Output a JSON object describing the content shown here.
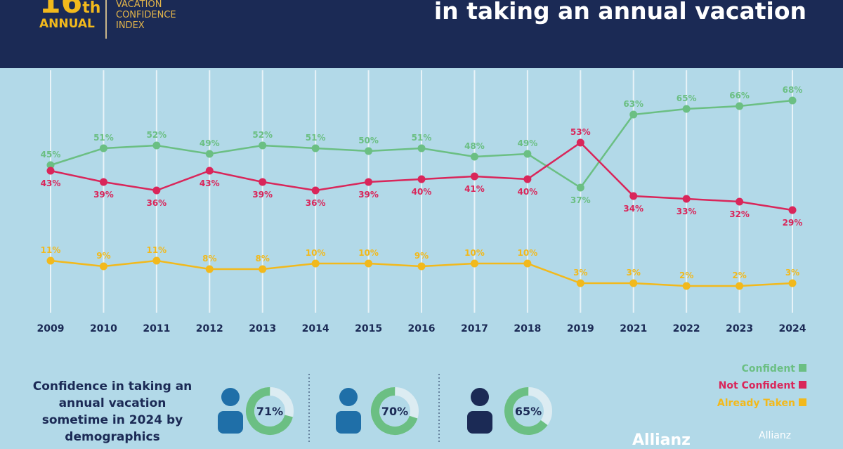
{
  "header": {
    "logo_number": "16",
    "logo_suffix": "th",
    "logo_annual": "ANNUAL",
    "logo_lines": [
      "VACATION",
      "CONFIDENCE",
      "INDEX"
    ],
    "title": "in taking an annual vacation"
  },
  "chart_data": {
    "type": "line",
    "categories": [
      "2009",
      "2010",
      "2011",
      "2012",
      "2013",
      "2014",
      "2015",
      "2016",
      "2017",
      "2018",
      "2019",
      "2021",
      "2022",
      "2023",
      "2024"
    ],
    "series": [
      {
        "name": "Confident",
        "color": "#6bbf83",
        "values": [
          45,
          51,
          52,
          49,
          52,
          51,
          50,
          51,
          48,
          49,
          37,
          63,
          65,
          66,
          68
        ]
      },
      {
        "name": "Not Confident",
        "color": "#d9265a",
        "values": [
          43,
          39,
          36,
          43,
          39,
          36,
          39,
          40,
          41,
          40,
          53,
          34,
          33,
          32,
          29
        ]
      },
      {
        "name": "Already Taken",
        "color": "#f2b91c",
        "values": [
          11,
          9,
          11,
          8,
          8,
          10,
          10,
          9,
          10,
          10,
          3,
          3,
          2,
          2,
          3
        ]
      }
    ],
    "unit": "%",
    "legend": "bottom-right",
    "grid": "vertical"
  },
  "demographics": {
    "title": "Confidence in taking an annual vacation sometime in 2024 by demographics",
    "items": [
      {
        "label": "71%",
        "value": 71
      },
      {
        "label": "70%",
        "value": 70
      },
      {
        "label": "65%",
        "value": 65
      }
    ]
  },
  "legend": [
    {
      "label": "Confident",
      "color": "#6bbf83"
    },
    {
      "label": "Not Confident",
      "color": "#d9265a"
    },
    {
      "label": "Already Taken",
      "color": "#f2b91c"
    }
  ],
  "footer": {
    "brand": "Allianz",
    "brand2": "Allianz"
  }
}
